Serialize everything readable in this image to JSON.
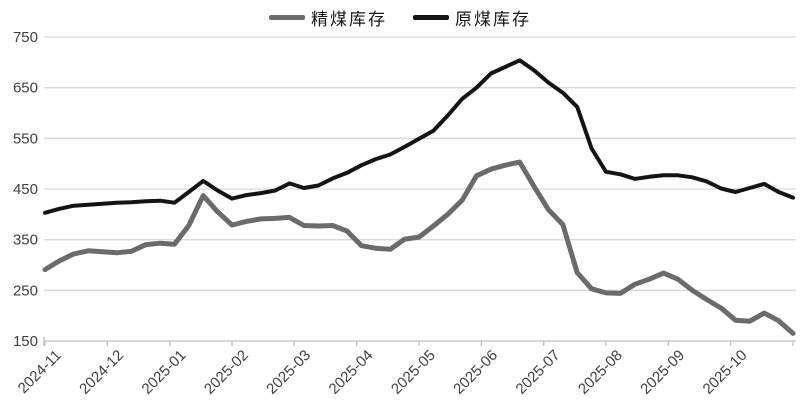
{
  "chart_data": {
    "type": "line",
    "title": "",
    "xlabel": "",
    "ylabel": "",
    "ylim": [
      150,
      750
    ],
    "y_ticks": [
      750,
      650,
      550,
      450,
      350,
      250,
      150
    ],
    "x_tick_labels": [
      "2024-11",
      "2024-12",
      "2025-01",
      "2025-02",
      "2025-03",
      "2025-04",
      "2025-05",
      "2025-06",
      "2025-07",
      "2025-08",
      "2025-09",
      "2025-10"
    ],
    "x_unit": "weekly points, 53 samples spanning the 12 labeled months",
    "grid": "horizontal",
    "legend_position": "top-center",
    "series": [
      {
        "name": "精煤库存",
        "color": "#6b6b6b",
        "line_width": 5,
        "values": [
          291,
          308,
          322,
          328,
          326,
          324,
          327,
          340,
          343,
          341,
          378,
          437,
          405,
          379,
          386,
          391,
          392,
          394,
          378,
          377,
          378,
          367,
          338,
          333,
          331,
          351,
          355,
          377,
          400,
          428,
          476,
          489,
          497,
          503,
          455,
          409,
          380,
          285,
          253,
          245,
          244,
          262,
          272,
          284,
          272,
          250,
          232,
          215,
          191,
          189,
          205,
          190,
          165
        ]
      },
      {
        "name": "原煤库存",
        "color": "#141414",
        "line_width": 4,
        "values": [
          403,
          411,
          417,
          419,
          421,
          423,
          424,
          426,
          427,
          423,
          444,
          466,
          447,
          431,
          438,
          442,
          447,
          461,
          452,
          457,
          471,
          482,
          497,
          509,
          518,
          533,
          549,
          565,
          595,
          628,
          650,
          678,
          691,
          704,
          684,
          660,
          640,
          612,
          530,
          484,
          479,
          470,
          474,
          477,
          477,
          473,
          465,
          451,
          444,
          452,
          460,
          444,
          433
        ]
      }
    ],
    "colors": {
      "gridline": "#d9d9d9",
      "axis_line": "#bfbfbf",
      "tick_text": "#404040",
      "background": "#ffffff"
    }
  }
}
